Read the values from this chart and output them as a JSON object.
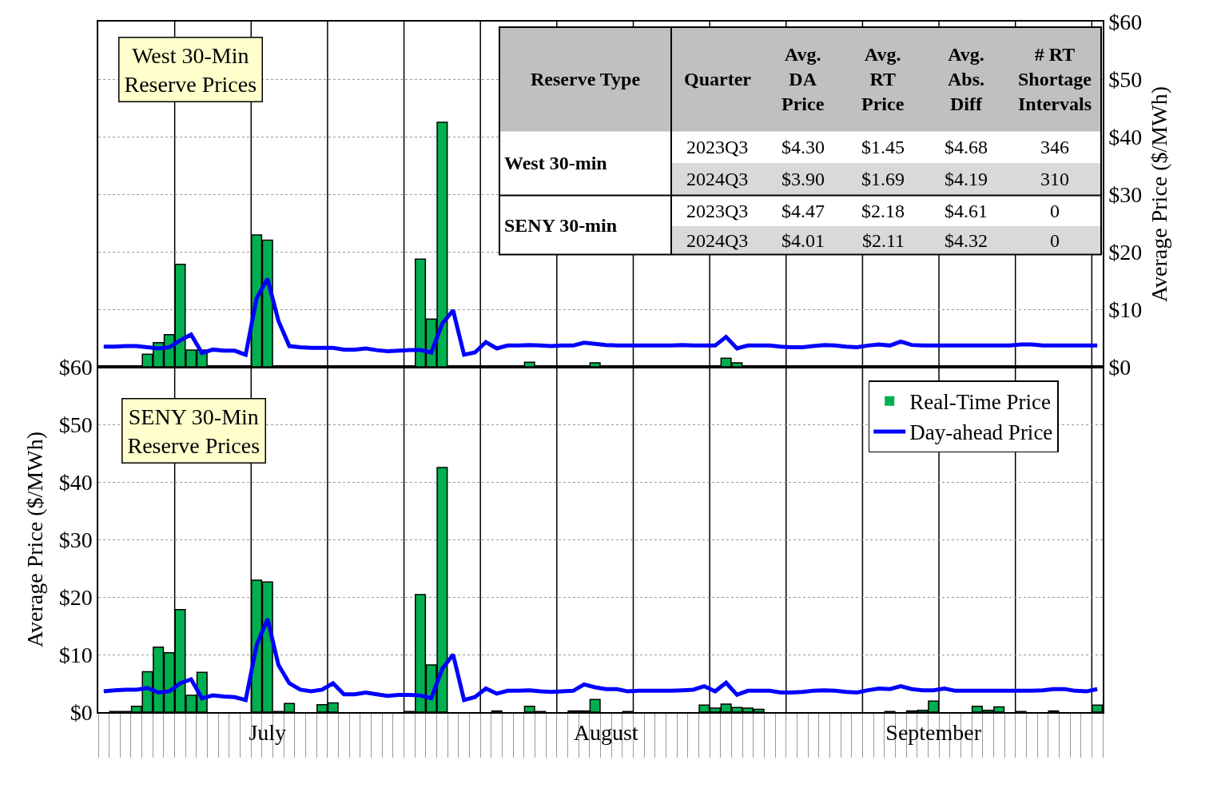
{
  "chart_data": [
    {
      "type": "bar",
      "title": "West 30-Min\nReserve Prices",
      "y2label": "Average Price ($/MWh)",
      "categories": [
        null,
        null,
        null,
        null,
        null,
        null,
        null,
        null,
        null,
        null,
        null,
        null,
        null,
        null,
        null,
        null,
        null,
        null,
        null,
        null,
        null,
        null,
        null,
        null,
        null,
        null,
        null,
        null,
        null,
        null,
        null,
        null,
        null,
        null,
        null,
        null,
        null,
        null,
        null,
        null,
        null,
        null,
        null,
        null,
        null,
        null,
        null,
        null,
        null,
        null,
        null,
        null,
        null,
        null,
        null,
        null,
        null,
        null,
        null,
        null,
        null,
        null,
        null,
        null,
        null,
        null,
        null,
        null,
        null,
        null,
        null,
        null,
        null,
        null,
        null,
        null,
        null,
        null,
        null,
        null,
        null,
        null,
        null,
        null,
        null,
        null,
        null,
        null,
        null,
        null,
        null,
        null
      ],
      "y2lim": [
        0,
        60
      ],
      "y2ticks": [
        {
          "value": 0,
          "label": "$0"
        },
        {
          "value": 10,
          "label": "$10"
        },
        {
          "value": 20,
          "label": "$20"
        },
        {
          "value": 30,
          "label": "$30"
        },
        {
          "value": 40,
          "label": "$40"
        },
        {
          "value": 50,
          "label": "$50"
        },
        {
          "value": 60,
          "label": "$60"
        }
      ],
      "series": [
        {
          "axis": "y2",
          "color": "#00b050",
          "values": [
            0,
            0,
            0,
            0.1,
            2.2,
            4.2,
            5.6,
            17.8,
            2.9,
            2.9,
            0,
            0,
            0,
            0,
            22.9,
            22.0,
            0,
            0,
            0,
            0,
            0.1,
            0,
            0,
            0,
            0,
            0,
            0,
            0,
            0,
            18.7,
            8.3,
            42.5,
            0,
            0,
            0,
            0,
            0.1,
            0,
            0,
            0.8,
            0,
            0,
            0,
            0.1,
            0,
            0.7,
            0,
            0,
            0,
            0,
            0,
            0,
            0,
            0,
            0,
            0,
            0.1,
            1.5,
            0.7,
            0,
            0,
            0,
            0,
            0,
            0,
            0,
            0,
            0,
            0,
            0,
            0,
            0,
            0,
            0,
            0,
            0,
            0.1,
            0,
            0,
            0,
            0.1,
            0,
            0,
            0,
            0.1,
            0,
            0,
            0,
            0,
            0,
            0,
            0
          ]
        },
        {
          "type": "line",
          "axis": "y2",
          "color": "#0000ff",
          "line_style": "solid",
          "values": [
            3.5,
            3.5,
            3.6,
            3.6,
            3.4,
            3.2,
            3.4,
            4.6,
            5.6,
            2.4,
            3.0,
            2.8,
            2.8,
            2.1,
            11.9,
            15.3,
            8.0,
            3.6,
            3.4,
            3.3,
            3.3,
            3.3,
            3.0,
            3.0,
            3.2,
            2.9,
            2.7,
            2.8,
            2.9,
            2.9,
            2.5,
            7.5,
            9.8,
            2.1,
            2.5,
            4.3,
            3.2,
            3.7,
            3.7,
            3.8,
            3.7,
            3.6,
            3.7,
            3.7,
            4.2,
            4.0,
            3.8,
            3.7,
            3.7,
            3.7,
            3.7,
            3.7,
            3.7,
            3.8,
            3.7,
            3.7,
            3.7,
            5.2,
            3.2,
            3.7,
            3.7,
            3.7,
            3.5,
            3.4,
            3.4,
            3.6,
            3.8,
            3.7,
            3.5,
            3.4,
            3.7,
            3.9,
            3.7,
            4.4,
            3.8,
            3.7,
            3.7,
            3.7,
            3.7,
            3.7,
            3.7,
            3.7,
            3.7,
            3.7,
            3.9,
            3.9,
            3.7,
            3.7,
            3.7,
            3.7,
            3.7,
            3.7
          ]
        }
      ],
      "marker": "none",
      "grid": "y",
      "tick_labels": "y",
      "annotations": [
        "Reserve Type",
        "Quarter",
        "Avg.\nDA\nPrice",
        "Avg.\nRT\nPrice",
        "Avg.\nAbs.\nDiff",
        "# RT\nShortage\nIntervals",
        "West 30-min",
        "2023Q3",
        "$4.30",
        "$1.45",
        "$4.68",
        "346",
        "2024Q3",
        "$3.90",
        "$1.69",
        "$4.19",
        "310",
        "SENY 30-min",
        "2023Q3",
        "$4.47",
        "$2.18",
        "$4.61",
        "0",
        "2024Q3",
        "$4.01",
        "$2.11",
        "$4.32",
        "0"
      ]
    },
    {
      "type": "bar",
      "title": "SENY 30-Min\nReserve Prices",
      "ylabel": "Average Price ($/MWh)",
      "categories": [
        null,
        null,
        null,
        null,
        null,
        null,
        null,
        null,
        null,
        null,
        null,
        null,
        null,
        null,
        null,
        "July",
        null,
        null,
        null,
        null,
        null,
        null,
        null,
        null,
        null,
        null,
        null,
        null,
        null,
        null,
        null,
        null,
        null,
        null,
        null,
        null,
        null,
        null,
        null,
        null,
        null,
        null,
        null,
        null,
        null,
        null,
        "August",
        null,
        null,
        null,
        null,
        null,
        null,
        null,
        null,
        null,
        null,
        null,
        null,
        null,
        null,
        null,
        null,
        null,
        null,
        null,
        null,
        null,
        null,
        null,
        null,
        null,
        null,
        null,
        null,
        null,
        "September",
        null,
        null,
        null,
        null,
        null,
        null,
        null,
        null,
        null,
        null,
        null,
        null,
        null,
        null,
        null
      ],
      "ylim": [
        0,
        60
      ],
      "yticks": [
        {
          "value": 0,
          "label": "$0"
        },
        {
          "value": 10,
          "label": "$10"
        },
        {
          "value": 20,
          "label": "$20"
        },
        {
          "value": 30,
          "label": "$30"
        },
        {
          "value": 40,
          "label": "$40"
        },
        {
          "value": 50,
          "label": "$50"
        },
        {
          "value": 60,
          "label": "$60"
        }
      ],
      "series": [
        {
          "name": "Real-Time Price",
          "color": "#00b050",
          "values": [
            0,
            0.1,
            0.1,
            1.0,
            7.0,
            11.3,
            10.3,
            17.8,
            2.9,
            6.9,
            0,
            0,
            0,
            0,
            22.9,
            22.6,
            0.1,
            1.5,
            0,
            0,
            1.3,
            1.6,
            0,
            0,
            0,
            0,
            0,
            0,
            0.1,
            20.4,
            8.2,
            42.5,
            0,
            0,
            0,
            0,
            0.2,
            0,
            0,
            1.0,
            0.1,
            0,
            0,
            0.2,
            0.2,
            2.2,
            0,
            0,
            0.1,
            0,
            0,
            0,
            0,
            0,
            0,
            1.2,
            0.7,
            1.4,
            0.8,
            0.7,
            0.5,
            0,
            0,
            0,
            0,
            0,
            0,
            0,
            0,
            0,
            0,
            0,
            0.1,
            0,
            0.2,
            0.3,
            1.9,
            0,
            0,
            0,
            1.0,
            0.3,
            0.9,
            0,
            0.1,
            0,
            0,
            0.2,
            0,
            0,
            0,
            1.2
          ]
        },
        {
          "type": "line",
          "name": "Day-ahead Price",
          "color": "#0000ff",
          "line_style": "solid",
          "values": [
            3.6,
            3.8,
            3.9,
            3.9,
            4.2,
            3.4,
            3.6,
            5.0,
            5.7,
            2.4,
            2.9,
            2.7,
            2.6,
            2.1,
            11.6,
            16.2,
            8.2,
            5.0,
            3.9,
            3.6,
            3.9,
            5.0,
            3.1,
            3.1,
            3.4,
            3.1,
            2.8,
            3.0,
            3.0,
            2.9,
            2.4,
            7.5,
            10.0,
            2.1,
            2.6,
            4.1,
            3.2,
            3.7,
            3.7,
            3.8,
            3.6,
            3.5,
            3.6,
            3.7,
            4.8,
            4.3,
            4.0,
            4.0,
            3.6,
            3.7,
            3.7,
            3.7,
            3.7,
            3.8,
            3.9,
            4.5,
            3.6,
            5.1,
            3.0,
            3.7,
            3.7,
            3.7,
            3.4,
            3.4,
            3.5,
            3.7,
            3.8,
            3.7,
            3.5,
            3.4,
            3.8,
            4.1,
            4.0,
            4.5,
            4.0,
            3.8,
            3.8,
            4.1,
            3.7,
            3.7,
            3.7,
            3.7,
            3.7,
            3.7,
            3.7,
            3.7,
            3.8,
            4.0,
            4.0,
            3.7,
            3.6,
            4.0
          ]
        }
      ],
      "marker": "none",
      "grid": "y",
      "legend": "top right"
    }
  ]
}
